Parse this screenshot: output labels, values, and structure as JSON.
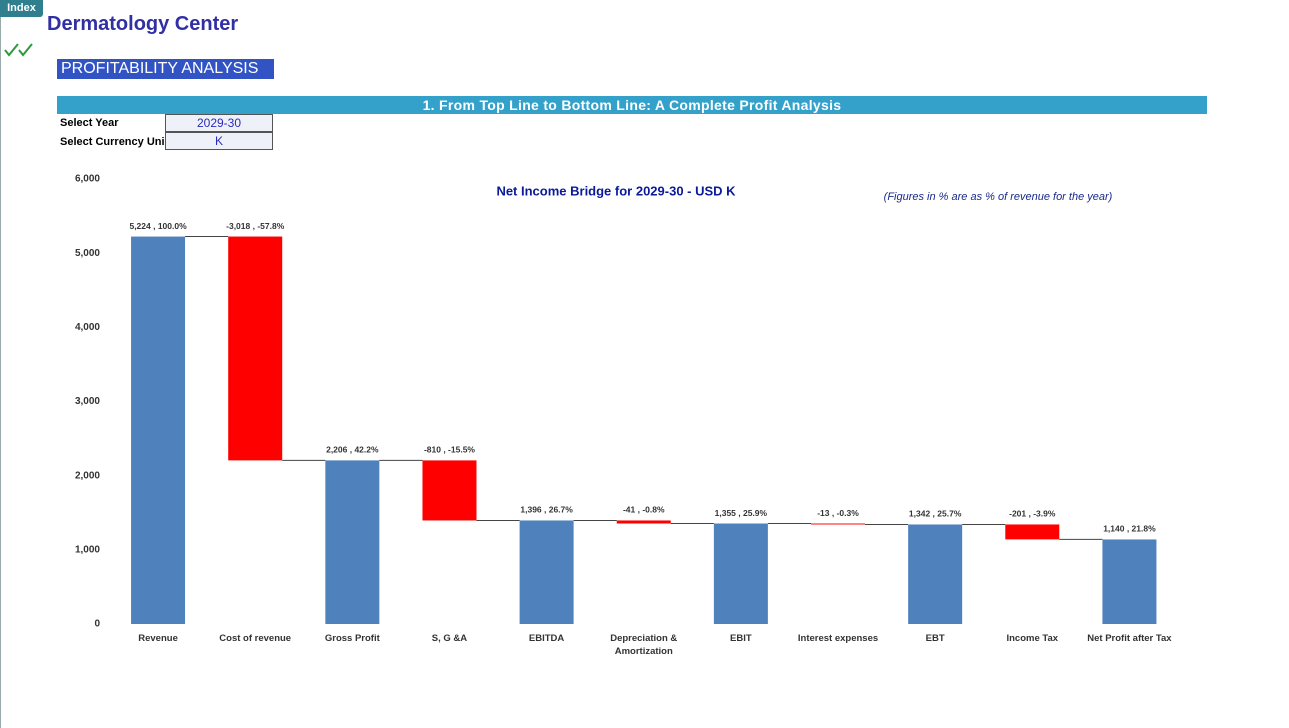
{
  "index_button": "Index",
  "title": "Dermatology Center",
  "section": "PROFITABILITY ANALYSIS",
  "banner": "1. From Top Line to Bottom Line: A Complete Profit Analysis",
  "inputs": [
    {
      "label": "Select Year",
      "value": "2029-30"
    },
    {
      "label": "Select Currency Uni",
      "value": "K"
    }
  ],
  "chart_data": {
    "type": "waterfall",
    "title": "Net Income Bridge for 2029-30 - USD K",
    "note": "(Figures in % are as % of revenue for the year)",
    "categories": [
      "Revenue",
      "Cost of revenue",
      "Gross Profit",
      "S, G &A",
      "EBITDA",
      "Depreciation & Amortization",
      "EBIT",
      "Interest expenses",
      "EBT",
      "Income Tax",
      "Net Profit after Tax"
    ],
    "values": [
      5224,
      -3018,
      2206,
      -810,
      1396,
      -41,
      1355,
      -13,
      1342,
      -201,
      1140
    ],
    "value_labels": [
      "5,224 , 100.0%",
      "-3,018 , -57.8%",
      "2,206 , 42.2%",
      "-810 , -15.5%",
      "1,396 , 26.7%",
      "-41 , -0.8%",
      "1,355 , 25.9%",
      "-13 , -0.3%",
      "1,342 , 25.7%",
      "-201 , -3.9%",
      "1,140 , 21.8%"
    ],
    "total_color": "#4f81bd",
    "decrease_color": "#ff0000",
    "ylim": [
      0,
      6000
    ],
    "yticks": [
      0,
      {
        "value": 1000,
        "label": "1,000"
      },
      {
        "value": 2000,
        "label": "2,000"
      },
      {
        "value": 3000,
        "label": "3,000"
      },
      {
        "value": 4000,
        "label": "4,000"
      },
      {
        "value": 5000,
        "label": "5,000"
      },
      {
        "value": 6000,
        "label": "6,000"
      }
    ],
    "grid": false
  }
}
